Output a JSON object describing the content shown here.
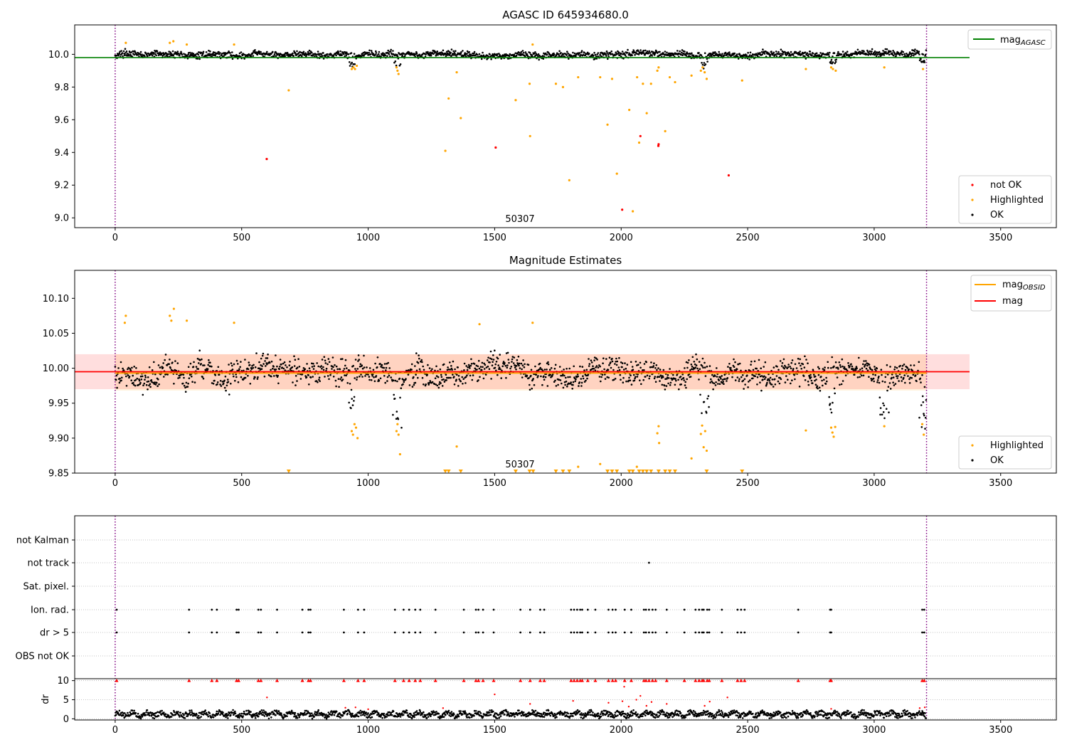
{
  "chart_data": [
    {
      "type": "scatter",
      "title": "AGASC ID 645934680.0",
      "xlim": [
        -160,
        3720
      ],
      "ylim": [
        8.94,
        10.18
      ],
      "xticks": [
        "0",
        "500",
        "1000",
        "1500",
        "2000",
        "2500",
        "3000",
        "3500"
      ],
      "yticks": [
        "9.0",
        "9.2",
        "9.4",
        "9.6",
        "9.8",
        "10.0"
      ],
      "vlines": [
        0,
        3207
      ],
      "obsid_annotation": {
        "x": 1600,
        "y": 9.0,
        "text": "50307"
      },
      "hline": {
        "name": "mag_AGASC",
        "y": 9.98,
        "x_end": 3377,
        "color": "#008000"
      },
      "legend_top": [
        {
          "label": "mag",
          "subscript": "AGASC",
          "color": "#008000"
        }
      ],
      "legend_bottom": [
        {
          "label": "not OK",
          "color": "#ff0000"
        },
        {
          "label": "Highlighted",
          "color": "#ffa500"
        },
        {
          "label": "OK",
          "color": "#000000"
        }
      ],
      "series": [
        {
          "name": "not OK",
          "color": "#ff0000",
          "points": [
            [
              599,
              9.36
            ],
            [
              1504,
              9.43
            ],
            [
              2004,
              9.05
            ],
            [
              2076,
              9.5
            ],
            [
              2147,
              9.44
            ],
            [
              2148,
              9.45
            ],
            [
              2425,
              9.26
            ]
          ]
        },
        {
          "name": "Highlighted",
          "color": "#ffa500",
          "points": [
            [
              42,
              10.07
            ],
            [
              216,
              10.07
            ],
            [
              230,
              10.08
            ],
            [
              283,
              10.06
            ],
            [
              470,
              10.06
            ],
            [
              686,
              9.78
            ],
            [
              935,
              9.91
            ],
            [
              942,
              9.92
            ],
            [
              948,
              9.91
            ],
            [
              955,
              9.93
            ],
            [
              1112,
              9.92
            ],
            [
              1116,
              9.9
            ],
            [
              1120,
              9.88
            ],
            [
              1305,
              9.41
            ],
            [
              1318,
              9.73
            ],
            [
              1350,
              9.89
            ],
            [
              1366,
              9.61
            ],
            [
              1583,
              9.72
            ],
            [
              1638,
              9.82
            ],
            [
              1640,
              9.5
            ],
            [
              1650,
              10.06
            ],
            [
              1742,
              9.82
            ],
            [
              1770,
              9.8
            ],
            [
              1795,
              9.23
            ],
            [
              1830,
              9.86
            ],
            [
              1917,
              9.86
            ],
            [
              1946,
              9.57
            ],
            [
              1964,
              9.85
            ],
            [
              1983,
              9.27
            ],
            [
              2032,
              9.66
            ],
            [
              2046,
              9.04
            ],
            [
              2063,
              9.86
            ],
            [
              2071,
              9.46
            ],
            [
              2086,
              9.82
            ],
            [
              2101,
              9.64
            ],
            [
              2118,
              9.82
            ],
            [
              2143,
              9.9
            ],
            [
              2148,
              9.92
            ],
            [
              2174,
              9.53
            ],
            [
              2192,
              9.86
            ],
            [
              2213,
              9.83
            ],
            [
              2278,
              9.87
            ],
            [
              2315,
              9.9
            ],
            [
              2322,
              9.92
            ],
            [
              2330,
              9.89
            ],
            [
              2338,
              9.85
            ],
            [
              2478,
              9.84
            ],
            [
              2730,
              9.91
            ],
            [
              2830,
              9.92
            ],
            [
              2837,
              9.91
            ],
            [
              2848,
              9.9
            ],
            [
              3040,
              9.92
            ],
            [
              3193,
              9.91
            ]
          ]
        }
      ],
      "ok_series": {
        "name": "OK",
        "color": "#000000",
        "x_range": [
          0,
          3207
        ],
        "center": 10.0,
        "spread": 0.022
      }
    },
    {
      "type": "scatter",
      "title": "Magnitude Estimates",
      "xlim": [
        -160,
        3720
      ],
      "ylim": [
        9.85,
        10.14
      ],
      "xticks": [
        "0",
        "500",
        "1000",
        "1500",
        "2000",
        "2500",
        "3000",
        "3500"
      ],
      "yticks": [
        "9.85",
        "9.90",
        "9.95",
        "10.00",
        "10.05",
        "10.10"
      ],
      "vlines": [
        0,
        3207
      ],
      "obsid_annotation": {
        "x": 1600,
        "y": 9.86,
        "text": "50307"
      },
      "lines": [
        {
          "name": "mag_OBSID",
          "color": "#ffa500",
          "y": 9.993,
          "x_start": 0,
          "x_end": 3207
        },
        {
          "name": "mag",
          "color": "#ff0000",
          "y": 9.995,
          "x_start": -160,
          "x_end": 3377
        }
      ],
      "bands": [
        {
          "name": "mag_OBSID",
          "color": "#ffa500",
          "y": [
            9.968,
            10.02
          ],
          "x": [
            0,
            3207
          ]
        },
        {
          "name": "mag",
          "color": "#ff0000",
          "y": [
            9.97,
            10.02
          ],
          "x": [
            -160,
            3377
          ]
        }
      ],
      "legend_top": [
        {
          "label": "mag",
          "subscript": "OBSID",
          "color": "#ffa500"
        },
        {
          "label": "mag",
          "subscript": "",
          "color": "#ff0000"
        }
      ],
      "legend_bottom": [
        {
          "label": "Highlighted",
          "color": "#ffa500"
        },
        {
          "label": "OK",
          "color": "#000000"
        }
      ],
      "series": [
        {
          "name": "Highlighted",
          "color": "#ffa500",
          "points": [
            [
              38,
              10.065
            ],
            [
              42,
              10.075
            ],
            [
              216,
              10.075
            ],
            [
              222,
              10.068
            ],
            [
              232,
              10.085
            ],
            [
              283,
              10.068
            ],
            [
              470,
              10.065
            ],
            [
              935,
              9.91
            ],
            [
              940,
              9.905
            ],
            [
              946,
              9.92
            ],
            [
              952,
              9.915
            ],
            [
              958,
              9.9
            ],
            [
              1112,
              9.91
            ],
            [
              1116,
              9.92
            ],
            [
              1120,
              9.905
            ],
            [
              1126,
              9.877
            ],
            [
              1350,
              9.888
            ],
            [
              1440,
              10.063
            ],
            [
              1650,
              10.065
            ],
            [
              1830,
              9.859
            ],
            [
              1917,
              9.863
            ],
            [
              2062,
              9.859
            ],
            [
              2143,
              9.907
            ],
            [
              2148,
              9.917
            ],
            [
              2150,
              9.893
            ],
            [
              2278,
              9.871
            ],
            [
              2315,
              9.906
            ],
            [
              2320,
              9.918
            ],
            [
              2326,
              9.887
            ],
            [
              2332,
              9.91
            ],
            [
              2338,
              9.882
            ],
            [
              2730,
              9.911
            ],
            [
              2830,
              9.915
            ],
            [
              2835,
              9.908
            ],
            [
              2840,
              9.902
            ],
            [
              2846,
              9.916
            ],
            [
              3040,
              9.917
            ],
            [
              3190,
              9.92
            ],
            [
              3196,
              9.905
            ]
          ]
        },
        {
          "name": "Highlighted (below range)",
          "color": "#ffa500",
          "marker": "triangle-down",
          "x": [
            686,
            1305,
            1318,
            1366,
            1583,
            1638,
            1652,
            1742,
            1770,
            1795,
            1946,
            1964,
            1983,
            2032,
            2046,
            2071,
            2086,
            2101,
            2118,
            2148,
            2174,
            2192,
            2213,
            2338,
            2478
          ]
        }
      ],
      "ok_series": {
        "name": "OK",
        "color": "#000000",
        "x_range": [
          0,
          3207
        ],
        "center": 9.995,
        "spread": 0.02
      }
    },
    {
      "type": "scatter",
      "title": "",
      "xlim": [
        -160,
        3720
      ],
      "xticks": [
        "0",
        "500",
        "1000",
        "1500",
        "2000",
        "2500",
        "3000",
        "3500"
      ],
      "vlines": [
        0,
        3207
      ],
      "flag_rows": [
        "not Kalman",
        "not track",
        "Sat. pixel.",
        "Ion. rad.",
        "dr > 5",
        "OBS not OK"
      ],
      "flag_points": {
        "not track": [
          2110
        ],
        "Ion. rad.": [
          6,
          292,
          382,
          402,
          480,
          488,
          566,
          576,
          640,
          740,
          764,
          772,
          904,
          960,
          984,
          1106,
          1140,
          1162,
          1186,
          1206,
          1266,
          1378,
          1426,
          1436,
          1454,
          1496,
          1602,
          1640,
          1680,
          1696,
          1802,
          1814,
          1826,
          1838,
          1846,
          1868,
          1898,
          1950,
          1966,
          1978,
          2014,
          2040,
          2090,
          2098,
          2110,
          2124,
          2136,
          2180,
          2250,
          2294,
          2308,
          2320,
          2326,
          2340,
          2348,
          2398,
          2460,
          2474,
          2488,
          2700,
          2826,
          2830,
          3190,
          3198
        ],
        "dr > 5": [
          6,
          292,
          382,
          402,
          480,
          488,
          566,
          576,
          640,
          740,
          764,
          772,
          904,
          960,
          984,
          1106,
          1140,
          1162,
          1186,
          1206,
          1266,
          1378,
          1426,
          1436,
          1454,
          1496,
          1602,
          1640,
          1680,
          1696,
          1802,
          1814,
          1826,
          1838,
          1846,
          1868,
          1898,
          1950,
          1966,
          1978,
          2014,
          2040,
          2090,
          2098,
          2110,
          2124,
          2136,
          2180,
          2250,
          2294,
          2308,
          2320,
          2326,
          2340,
          2348,
          2398,
          2460,
          2474,
          2488,
          2700,
          2826,
          2830,
          3190,
          3198
        ]
      },
      "dr_panel": {
        "ylabel": "dr",
        "ylim": [
          -0.3,
          10.5
        ],
        "yticks": [
          "0",
          "5",
          "10"
        ],
        "capped_red_x": [
          6,
          292,
          382,
          402,
          480,
          488,
          566,
          576,
          640,
          740,
          764,
          772,
          904,
          960,
          984,
          1106,
          1140,
          1162,
          1186,
          1206,
          1266,
          1378,
          1426,
          1436,
          1454,
          1496,
          1602,
          1640,
          1680,
          1696,
          1802,
          1814,
          1826,
          1838,
          1846,
          1868,
          1898,
          1950,
          1966,
          1978,
          2014,
          2040,
          2090,
          2098,
          2110,
          2124,
          2136,
          2180,
          2250,
          2294,
          2308,
          2320,
          2326,
          2340,
          2348,
          2398,
          2460,
          2474,
          2488,
          2700,
          2826,
          2830,
          3190,
          3198
        ],
        "red_points": [
          [
            600,
            5.6
          ],
          [
            910,
            2.9
          ],
          [
            950,
            3.0
          ],
          [
            1000,
            2.5
          ],
          [
            1296,
            2.8
          ],
          [
            1500,
            6.4
          ],
          [
            1640,
            3.9
          ],
          [
            1810,
            4.7
          ],
          [
            1950,
            4.2
          ],
          [
            2005,
            4.6
          ],
          [
            2012,
            8.4
          ],
          [
            2030,
            3.2
          ],
          [
            2060,
            5.0
          ],
          [
            2076,
            6.0
          ],
          [
            2100,
            3.4
          ],
          [
            2120,
            4.4
          ],
          [
            2180,
            3.9
          ],
          [
            2330,
            3.4
          ],
          [
            2350,
            4.5
          ],
          [
            2420,
            5.6
          ],
          [
            2830,
            2.6
          ],
          [
            3180,
            2.8
          ],
          [
            3200,
            3.0
          ]
        ],
        "ok_center": 1.2,
        "ok_spread": 0.7
      }
    }
  ]
}
